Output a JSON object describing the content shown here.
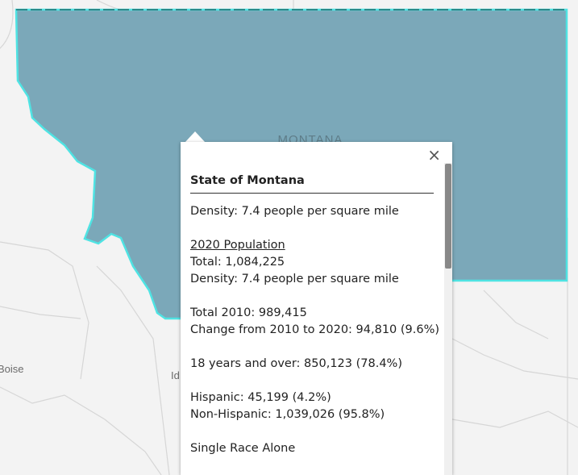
{
  "map": {
    "labels": [
      "MONTANA",
      "Boise",
      "Id"
    ]
  },
  "popup": {
    "title": "State of Montana",
    "close": "×",
    "paragraphs": [
      {
        "lines": [
          "Density: 7.4 people per square mile"
        ]
      },
      {
        "heading": "2020 Population",
        "lines": [
          "Total: 1,084,225",
          "Density: 7.4 people per square mile"
        ]
      },
      {
        "lines": [
          "Total 2010: 989,415",
          "Change from 2010 to 2020: 94,810 (9.6%)"
        ]
      },
      {
        "lines": [
          "18 years and over: 850,123 (78.4%)"
        ]
      },
      {
        "lines": [
          "Hispanic: 45,199 (4.2%)",
          "Non-Hispanic: 1,039,026 (95.8%)"
        ]
      },
      {
        "lines": [
          "Single Race Alone"
        ]
      }
    ]
  }
}
